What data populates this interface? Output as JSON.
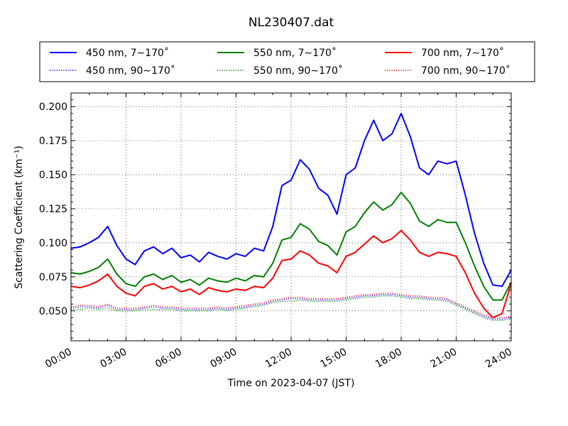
{
  "chart_data": {
    "type": "line",
    "title": "NL230407.dat",
    "xlabel": "Time on 2023-04-07 (JST)",
    "ylabel": "Scattering Coefficient (km⁻¹)",
    "xlim": [
      0,
      24
    ],
    "ylim": [
      0.028,
      0.21
    ],
    "x_tick_labels": [
      "00:00",
      "03:00",
      "06:00",
      "09:00",
      "12:00",
      "15:00",
      "18:00",
      "21:00",
      "24:00"
    ],
    "y_tick_labels": [
      "0.050",
      "0.075",
      "0.100",
      "0.125",
      "0.150",
      "0.175",
      "0.200"
    ],
    "grid": true,
    "legend_placement": "top, outside, 3 columns",
    "x": [
      0,
      0.5,
      1,
      1.5,
      2,
      2.5,
      3,
      3.5,
      4,
      4.5,
      5,
      5.5,
      6,
      6.5,
      7,
      7.5,
      8,
      8.5,
      9,
      9.5,
      10,
      10.5,
      11,
      11.5,
      12,
      12.5,
      13,
      13.5,
      14,
      14.5,
      15,
      15.5,
      16,
      16.5,
      17,
      17.5,
      18,
      18.5,
      19,
      19.5,
      20,
      20.5,
      21,
      21.5,
      22,
      22.5,
      23,
      23.5,
      24
    ],
    "series": [
      {
        "name": "450 nm, 7∼170˚",
        "color": "#0000ff",
        "style": "solid",
        "values": [
          0.096,
          0.097,
          0.1,
          0.104,
          0.112,
          0.098,
          0.088,
          0.084,
          0.094,
          0.097,
          0.092,
          0.096,
          0.089,
          0.091,
          0.086,
          0.093,
          0.09,
          0.088,
          0.092,
          0.09,
          0.096,
          0.094,
          0.112,
          0.142,
          0.146,
          0.161,
          0.154,
          0.14,
          0.135,
          0.121,
          0.15,
          0.155,
          0.175,
          0.19,
          0.175,
          0.18,
          0.195,
          0.178,
          0.155,
          0.15,
          0.16,
          0.158,
          0.16,
          0.135,
          0.107,
          0.085,
          0.069,
          0.068,
          0.08
        ]
      },
      {
        "name": "450 nm, 90∼170˚",
        "color": "#0000ff",
        "style": "dotted",
        "values": [
          0.052,
          0.053,
          0.053,
          0.052,
          0.054,
          0.051,
          0.051,
          0.051,
          0.052,
          0.053,
          0.052,
          0.052,
          0.051,
          0.051,
          0.051,
          0.051,
          0.052,
          0.051,
          0.052,
          0.053,
          0.054,
          0.055,
          0.057,
          0.058,
          0.059,
          0.059,
          0.058,
          0.058,
          0.058,
          0.058,
          0.059,
          0.06,
          0.061,
          0.061,
          0.062,
          0.062,
          0.061,
          0.06,
          0.06,
          0.059,
          0.059,
          0.058,
          0.055,
          0.052,
          0.049,
          0.046,
          0.044,
          0.044,
          0.045
        ]
      },
      {
        "name": "550 nm, 7∼170˚",
        "color": "#008000",
        "style": "solid",
        "values": [
          0.078,
          0.077,
          0.079,
          0.082,
          0.088,
          0.077,
          0.07,
          0.068,
          0.075,
          0.077,
          0.073,
          0.076,
          0.071,
          0.073,
          0.069,
          0.074,
          0.072,
          0.071,
          0.074,
          0.072,
          0.076,
          0.075,
          0.085,
          0.102,
          0.104,
          0.114,
          0.11,
          0.101,
          0.098,
          0.091,
          0.108,
          0.112,
          0.122,
          0.13,
          0.124,
          0.128,
          0.137,
          0.129,
          0.116,
          0.112,
          0.117,
          0.115,
          0.115,
          0.1,
          0.083,
          0.068,
          0.058,
          0.058,
          0.071
        ]
      },
      {
        "name": "550 nm, 90∼170˚",
        "color": "#008000",
        "style": "dotted",
        "values": [
          0.051,
          0.051,
          0.052,
          0.051,
          0.052,
          0.05,
          0.05,
          0.05,
          0.051,
          0.051,
          0.051,
          0.051,
          0.05,
          0.05,
          0.05,
          0.05,
          0.051,
          0.05,
          0.051,
          0.052,
          0.053,
          0.054,
          0.056,
          0.057,
          0.057,
          0.058,
          0.057,
          0.057,
          0.057,
          0.057,
          0.058,
          0.059,
          0.06,
          0.06,
          0.061,
          0.061,
          0.06,
          0.059,
          0.059,
          0.058,
          0.058,
          0.057,
          0.054,
          0.051,
          0.048,
          0.045,
          0.043,
          0.043,
          0.044
        ]
      },
      {
        "name": "700 nm, 7∼170˚",
        "color": "#ff0000",
        "style": "solid",
        "values": [
          0.068,
          0.067,
          0.069,
          0.072,
          0.077,
          0.068,
          0.063,
          0.061,
          0.068,
          0.07,
          0.066,
          0.068,
          0.064,
          0.066,
          0.062,
          0.067,
          0.065,
          0.064,
          0.066,
          0.065,
          0.068,
          0.067,
          0.074,
          0.087,
          0.088,
          0.094,
          0.091,
          0.085,
          0.083,
          0.078,
          0.09,
          0.093,
          0.099,
          0.105,
          0.1,
          0.103,
          0.109,
          0.102,
          0.093,
          0.09,
          0.093,
          0.092,
          0.09,
          0.078,
          0.063,
          0.052,
          0.045,
          0.048,
          0.07
        ]
      },
      {
        "name": "700 nm, 90∼170˚",
        "color": "#ff0000",
        "style": "dotted",
        "values": [
          0.053,
          0.054,
          0.054,
          0.053,
          0.055,
          0.052,
          0.052,
          0.052,
          0.053,
          0.054,
          0.053,
          0.053,
          0.052,
          0.052,
          0.052,
          0.052,
          0.053,
          0.052,
          0.053,
          0.054,
          0.055,
          0.056,
          0.058,
          0.059,
          0.06,
          0.06,
          0.059,
          0.059,
          0.059,
          0.059,
          0.06,
          0.061,
          0.062,
          0.062,
          0.063,
          0.063,
          0.062,
          0.061,
          0.061,
          0.06,
          0.06,
          0.059,
          0.056,
          0.053,
          0.05,
          0.047,
          0.045,
          0.045,
          0.046
        ]
      }
    ]
  }
}
